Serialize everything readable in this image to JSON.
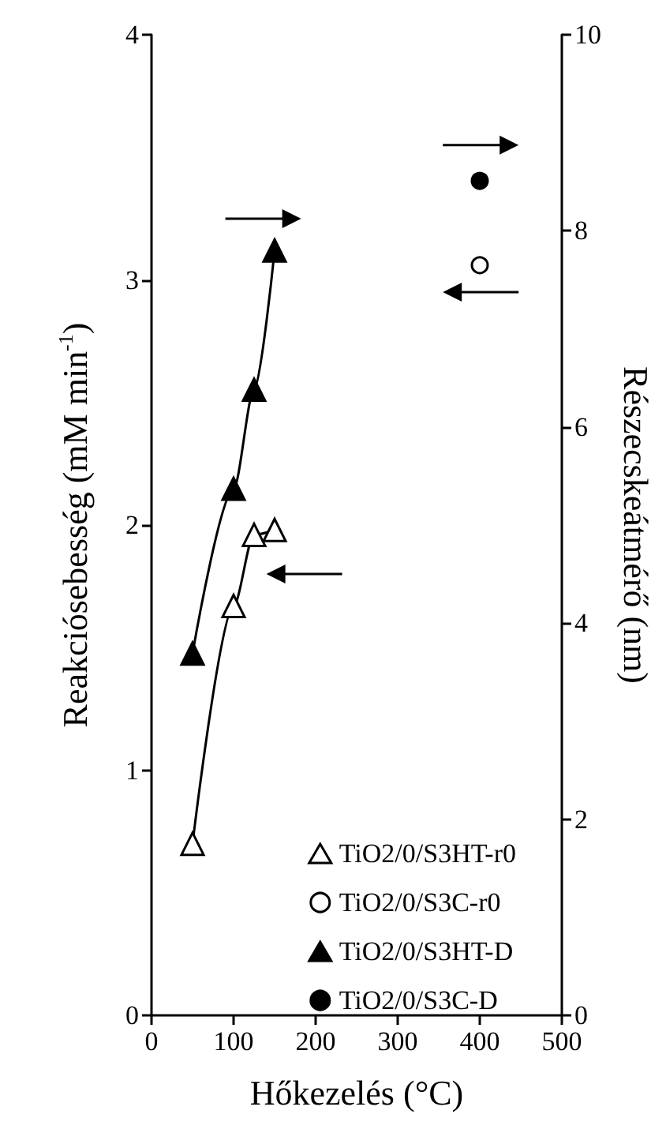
{
  "chart_data": {
    "type": "line",
    "xlabel": "Hőkezelés (°C)",
    "ylabel": "Reakciósebesség (mM min$^{-1}$)",
    "y2label": "Részecskeátmérő (nm)",
    "xlim": [
      0,
      500
    ],
    "xticks": [
      0,
      100,
      200,
      300,
      400,
      500
    ],
    "ylim": [
      0,
      4
    ],
    "yticks": [
      0,
      1,
      2,
      3,
      4
    ],
    "y2lim": [
      0,
      10
    ],
    "y2ticks": [
      0,
      2,
      4,
      6,
      8,
      10
    ],
    "grid": false,
    "legend": "bottom right",
    "series": [
      {
        "name": "TiO2/0/S3HT-r0",
        "marker": "triangle",
        "color": "#000000",
        "x": [
          50,
          100,
          125,
          150
        ],
        "values": [
          0.7,
          1.67,
          1.96,
          1.98
        ]
      },
      {
        "name": "TiO2/0/S3C-r0",
        "type": "scatter",
        "marker": "circle",
        "color": "#000000",
        "x": [
          400
        ],
        "values": [
          3.06
        ]
      },
      {
        "name": "TiO2/0/S3HT-D",
        "marker": "triangle",
        "axis": "y2",
        "color": "#000000",
        "x": [
          50,
          100,
          125,
          150
        ],
        "values": [
          3.69,
          5.37,
          6.38,
          7.8
        ]
      },
      {
        "name": "TiO2/0/S3C-D",
        "type": "scatter",
        "marker": "circle",
        "axis": "y2",
        "color": "#000000",
        "x": [
          400
        ],
        "values": [
          8.51
        ]
      }
    ]
  }
}
